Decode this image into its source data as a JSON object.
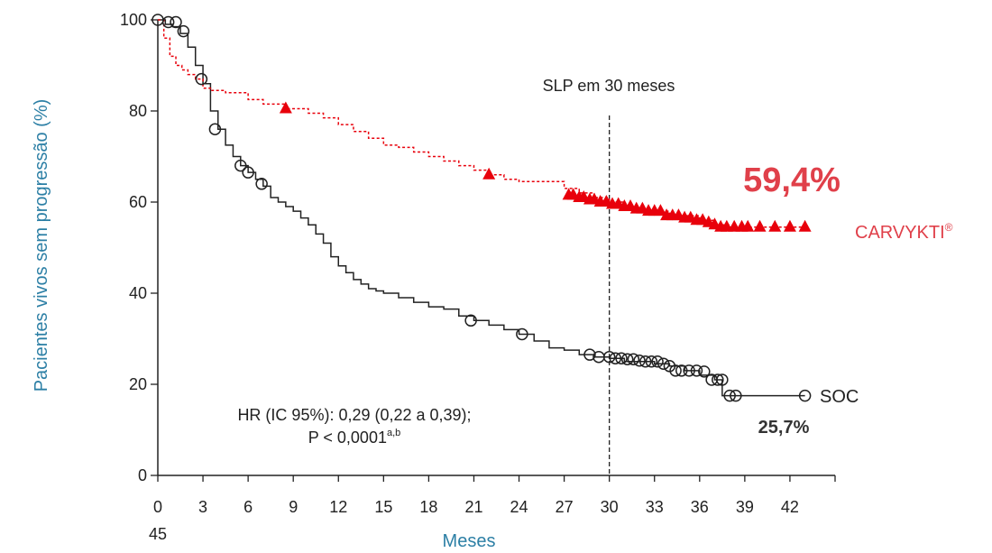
{
  "chart_data": {
    "type": "line",
    "xlabel": "Meses",
    "ylabel": "Pacientes vivos sem progressão (%)",
    "xlim": [
      0,
      45
    ],
    "ylim": [
      0,
      100
    ],
    "x_ticks": [
      0,
      3,
      6,
      9,
      12,
      15,
      18,
      21,
      24,
      27,
      30,
      33,
      36,
      39,
      42
    ],
    "x_tick_labels": [
      "0",
      "3",
      "6",
      "9",
      "12",
      "15",
      "18",
      "21",
      "24",
      "27",
      "30",
      "33",
      "36",
      "39",
      "42"
    ],
    "x_extra_label": "45",
    "y_ticks": [
      0,
      20,
      40,
      60,
      80,
      100
    ],
    "y_tick_labels": [
      "0",
      "20",
      "40",
      "60",
      "80",
      "100"
    ],
    "grid": false,
    "annotations": {
      "vline_x": 30,
      "vline_label": "SLP em 30 meses",
      "hr_line1": "HR (IC 95%): 0,29 (0,22 a 0,39);",
      "hr_line2": "P < 0,0001",
      "hr_sup": "a,b",
      "carvykti_pct": "59,4%",
      "soc_pct": "25,7%"
    },
    "colors": {
      "carvykti": "#e8000b",
      "carvykti_text": "#e0404a",
      "soc": "#222222",
      "axis_title": "#2c7fa5"
    },
    "series": [
      {
        "name": "CARVYKTI",
        "name_sup": "®",
        "style": "dashed-step",
        "marker": "triangle",
        "x": [
          0,
          0.4,
          0.8,
          1.2,
          1.6,
          2.0,
          2.5,
          3.0,
          3.5,
          4.5,
          6,
          7,
          8.5,
          10,
          11,
          12,
          13,
          14,
          15,
          16,
          17,
          18,
          19,
          20,
          21,
          22,
          23,
          24,
          25,
          26,
          27,
          28,
          29,
          30,
          31,
          32,
          33,
          34,
          35,
          36,
          37,
          38,
          39,
          40,
          41,
          42,
          43
        ],
        "y": [
          100,
          96,
          92,
          90,
          89,
          88,
          87,
          85,
          84.5,
          84,
          82.5,
          81.5,
          80.5,
          79.5,
          78.5,
          77,
          75.5,
          74,
          72.5,
          72,
          71,
          70,
          69,
          68,
          67,
          66,
          65,
          64.5,
          64.5,
          64.5,
          63,
          62,
          61,
          60,
          59,
          58,
          58,
          57,
          57,
          56,
          55,
          54.5,
          54.5,
          54.5,
          54.5,
          54.5,
          54.5
        ],
        "censored_x": [
          8.5,
          22,
          27.3,
          27.6,
          28,
          28.3,
          28.7,
          29,
          29.4,
          29.8,
          30.2,
          30.6,
          31,
          31.4,
          31.8,
          32.2,
          32.6,
          33,
          33.4,
          33.8,
          34.2,
          34.6,
          35,
          35.4,
          35.8,
          36.2,
          36.6,
          37,
          37.4,
          37.8,
          38.3,
          38.8,
          39.2,
          40,
          41,
          42,
          43
        ],
        "censored_y": [
          80.5,
          66,
          61.5,
          61.5,
          61,
          61,
          60.5,
          60.5,
          60,
          60,
          59.5,
          59.5,
          59,
          59,
          58.5,
          58.5,
          58,
          58,
          58,
          57,
          57,
          57,
          56.5,
          56.5,
          56,
          56,
          55.5,
          55,
          54.5,
          54.5,
          54.5,
          54.5,
          54.5,
          54.5,
          54.5,
          54.5,
          54.5
        ]
      },
      {
        "name": "SOC",
        "style": "solid-step",
        "marker": "circle",
        "x": [
          0,
          0.5,
          1,
          1.5,
          2,
          2.5,
          3,
          3.5,
          4,
          4.5,
          5,
          5.5,
          6,
          6.5,
          7,
          7.5,
          8,
          8.5,
          9,
          9.5,
          10,
          10.5,
          11,
          11.5,
          12,
          12.5,
          13,
          13.5,
          14,
          14.5,
          15,
          16,
          17,
          18,
          19,
          20,
          21,
          22,
          23,
          24,
          25,
          26,
          27,
          28,
          29,
          30,
          31,
          32,
          33,
          34,
          35,
          36,
          37,
          37.5,
          38,
          39,
          40,
          41,
          42,
          43
        ],
        "y": [
          100,
          99,
          98.5,
          97,
          94,
          90,
          86,
          80,
          76,
          72.5,
          70,
          68,
          66.5,
          65,
          63.5,
          61,
          60,
          59,
          58,
          56.5,
          55,
          53,
          51,
          48,
          46,
          44.5,
          43,
          42,
          41,
          40.5,
          40,
          39,
          38,
          37,
          36.5,
          35,
          34,
          33,
          32,
          31,
          29.5,
          28,
          27.5,
          26.5,
          26,
          25.7,
          25,
          25,
          24.5,
          24,
          23,
          22,
          21,
          17.5,
          17.5,
          17.5,
          17.5,
          17.5,
          17.5,
          17.5
        ],
        "censored_x": [
          0,
          0.7,
          1.2,
          1.7,
          2.9,
          3.8,
          5.5,
          6,
          6.9,
          20.8,
          24.2,
          28.7,
          29.3,
          30,
          30.4,
          30.8,
          31.2,
          31.6,
          32,
          32.4,
          32.8,
          33.2,
          33.6,
          34,
          34.4,
          34.8,
          35.3,
          35.8,
          36.3,
          36.8,
          37.2,
          37.5,
          38,
          38.4,
          43
        ],
        "censored_y": [
          100,
          99.5,
          99.5,
          97.5,
          87,
          76,
          68,
          66.5,
          64,
          34,
          31,
          26.5,
          26,
          26,
          25.7,
          25.7,
          25.5,
          25.5,
          25.2,
          25,
          25,
          25,
          24.5,
          24,
          23,
          23,
          23,
          23,
          22.8,
          21,
          21,
          21,
          17.5,
          17.5,
          17.5
        ]
      }
    ]
  }
}
